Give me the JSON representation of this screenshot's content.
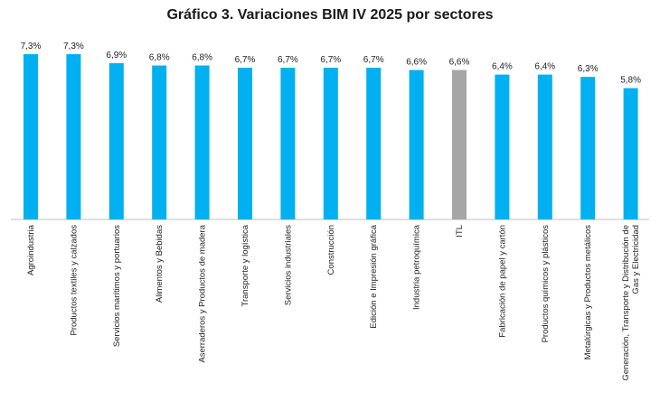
{
  "chart_data": {
    "type": "bar",
    "title": "Gráfico 3. Variaciones BIM IV 2025 por sectores",
    "xlabel": "",
    "ylabel": "",
    "ylim": [
      0,
      7.3
    ],
    "grid": false,
    "legend": "none",
    "categories": [
      [
        "Agroindustria"
      ],
      [
        "Productos textiles y calzados"
      ],
      [
        "Servicios marítimos y portuarios"
      ],
      [
        "Alimentos y Bebidas"
      ],
      [
        "Aserraderos y Productos de madera"
      ],
      [
        "Transporte y logística"
      ],
      [
        "Servicios industriales"
      ],
      [
        "Construcción"
      ],
      [
        "Edición e Impresión gráfica"
      ],
      [
        "Industria petroquímica"
      ],
      [
        "ITL"
      ],
      [
        "Fabricación de papel y cartón"
      ],
      [
        "Productos químicos y plásticos"
      ],
      [
        "Metalúrgicas y Productos metálicos"
      ],
      [
        "Generación, Transporte y Distribución de",
        "Gas y Electricidad"
      ]
    ],
    "values": [
      7.3,
      7.3,
      6.9,
      6.8,
      6.8,
      6.7,
      6.7,
      6.7,
      6.7,
      6.6,
      6.6,
      6.4,
      6.4,
      6.3,
      5.8
    ],
    "value_labels": [
      "7,3%",
      "7,3%",
      "6,9%",
      "6,8%",
      "6,8%",
      "6,7%",
      "6,7%",
      "6,7%",
      "6,7%",
      "6,6%",
      "6,6%",
      "6,4%",
      "6,4%",
      "6,3%",
      "5,8%"
    ],
    "colors": {
      "default": "#00B0F0",
      "highlight": "#A6A6A6",
      "axis": "#BFBFBF"
    },
    "highlight_index": 10
  }
}
